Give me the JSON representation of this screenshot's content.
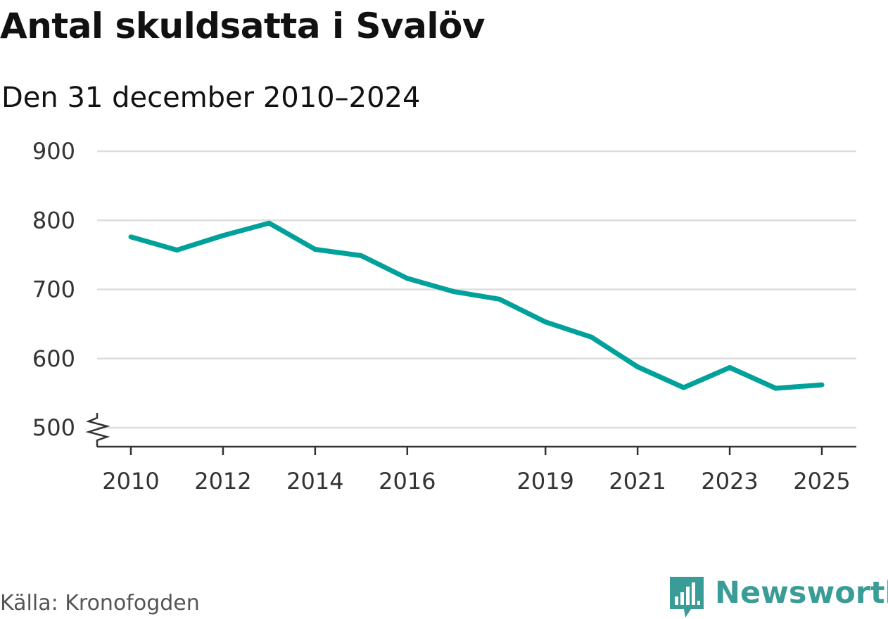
{
  "title": "Antal skuldsatta i Svalöv",
  "subtitle": "Den 31 december 2010–2024",
  "source": "Källa: Kronofogden",
  "brand": {
    "name": "Newsworthy",
    "icon": "bar-chart-speech-bubble-icon",
    "color": "#3a9c96"
  },
  "chart_data": {
    "type": "line",
    "title": "Antal skuldsatta i Svalöv",
    "subtitle": "Den 31 december 2010–2024",
    "xlabel": "",
    "ylabel": "",
    "x": [
      2010,
      2011,
      2012,
      2013,
      2014,
      2015,
      2016,
      2017,
      2018,
      2019,
      2020,
      2021,
      2022,
      2023,
      2024,
      2025
    ],
    "series": [
      {
        "values": [
          776,
          757,
          778,
          796,
          758,
          749,
          716,
          697,
          686,
          653,
          631,
          588,
          558,
          587,
          557,
          562
        ],
        "color": "#00a19a"
      }
    ],
    "x_ticks": [
      "2010",
      "2012",
      "2014",
      "2016",
      "2019",
      "2021",
      "2023",
      "2025"
    ],
    "y_ticks": [
      "500",
      "600",
      "700",
      "800",
      "900"
    ],
    "xlim": [
      2010,
      2025
    ],
    "ylim": [
      500,
      900
    ],
    "y_axis_break": true,
    "grid": "horizontal",
    "legend": "none"
  }
}
